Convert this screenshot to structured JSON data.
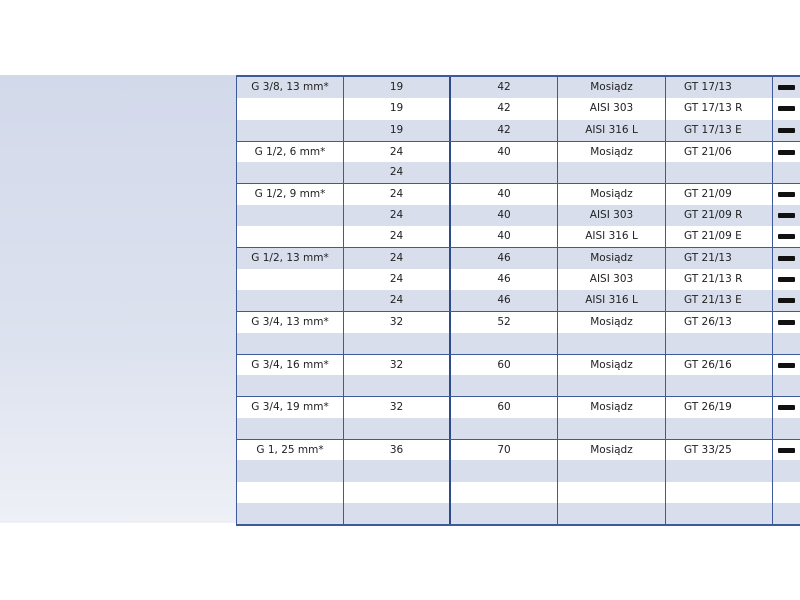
{
  "rows": [
    {
      "size": "G 3/8, 13 mm*",
      "a": "19",
      "b": "42",
      "material": "Mosiądz",
      "code": "GT 17/13",
      "mark": true,
      "sep": true
    },
    {
      "size": "",
      "a": "19",
      "b": "42",
      "material": "AISI 303",
      "code": "GT 17/13 R",
      "mark": true,
      "sep": false
    },
    {
      "size": "",
      "a": "19",
      "b": "42",
      "material": "AISI 316 L",
      "code": "GT 17/13 E",
      "mark": true,
      "sep": false
    },
    {
      "size": "G 1/2, 6 mm*",
      "a": "24",
      "b": "40",
      "material": "Mosiądz",
      "code": "GT 21/06",
      "mark": true,
      "sep": true
    },
    {
      "size": "",
      "a": "24",
      "b": "",
      "material": "",
      "code": "",
      "mark": false,
      "sep": false
    },
    {
      "size": "G 1/2, 9 mm*",
      "a": "24",
      "b": "40",
      "material": "Mosiądz",
      "code": "GT 21/09",
      "mark": true,
      "sep": true
    },
    {
      "size": "",
      "a": "24",
      "b": "40",
      "material": "AISI 303",
      "code": "GT 21/09 R",
      "mark": true,
      "sep": false
    },
    {
      "size": "",
      "a": "24",
      "b": "40",
      "material": "AISI 316 L",
      "code": "GT 21/09 E",
      "mark": true,
      "sep": false
    },
    {
      "size": "G 1/2, 13 mm*",
      "a": "24",
      "b": "46",
      "material": "Mosiądz",
      "code": "GT 21/13",
      "mark": true,
      "sep": true
    },
    {
      "size": "",
      "a": "24",
      "b": "46",
      "material": "AISI 303",
      "code": "GT 21/13 R",
      "mark": true,
      "sep": false
    },
    {
      "size": "",
      "a": "24",
      "b": "46",
      "material": "AISI 316 L",
      "code": "GT 21/13 E",
      "mark": true,
      "sep": false
    },
    {
      "size": "G 3/4, 13 mm*",
      "a": "32",
      "b": "52",
      "material": "Mosiądz",
      "code": "GT 26/13",
      "mark": true,
      "sep": true
    },
    {
      "size": "",
      "a": "",
      "b": "",
      "material": "",
      "code": "",
      "mark": false,
      "sep": false
    },
    {
      "size": "G 3/4, 16 mm*",
      "a": "32",
      "b": "60",
      "material": "Mosiądz",
      "code": "GT 26/16",
      "mark": true,
      "sep": true
    },
    {
      "size": "",
      "a": "",
      "b": "",
      "material": "",
      "code": "",
      "mark": false,
      "sep": false
    },
    {
      "size": "G 3/4, 19 mm*",
      "a": "32",
      "b": "60",
      "material": "Mosiądz",
      "code": "GT 26/19",
      "mark": true,
      "sep": true
    },
    {
      "size": "",
      "a": "",
      "b": "",
      "material": "",
      "code": "",
      "mark": false,
      "sep": false
    },
    {
      "size": "G 1, 25 mm*",
      "a": "36",
      "b": "70",
      "material": "Mosiądz",
      "code": "GT 33/25",
      "mark": true,
      "sep": true
    },
    {
      "size": "",
      "a": "",
      "b": "",
      "material": "",
      "code": "",
      "mark": false,
      "sep": false
    },
    {
      "size": "",
      "a": "",
      "b": "",
      "material": "",
      "code": "",
      "mark": false,
      "sep": false
    },
    {
      "size": "",
      "a": "",
      "b": "",
      "material": "",
      "code": "",
      "mark": false,
      "sep": false
    }
  ]
}
